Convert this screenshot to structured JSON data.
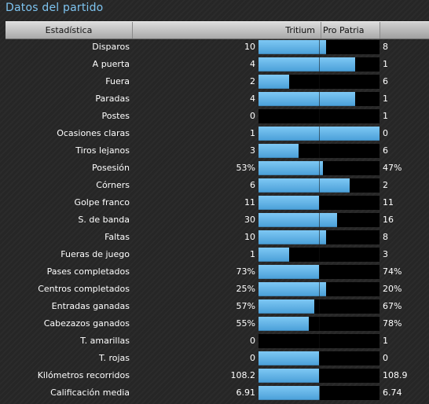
{
  "title": "Datos del partido",
  "header": {
    "stat_label": "Estadística",
    "home_team": "Tritium",
    "away_team": "Pro Patria"
  },
  "colors": {
    "accent": "#7ec4f0",
    "bar_fill": "#5bb0e6",
    "bar_track": "#000000"
  },
  "stats": [
    {
      "label": "Disparos",
      "home": "10",
      "away": "8",
      "home_share": 0.556
    },
    {
      "label": "A puerta",
      "home": "4",
      "away": "1",
      "home_share": 0.8
    },
    {
      "label": "Fuera",
      "home": "2",
      "away": "6",
      "home_share": 0.25
    },
    {
      "label": "Paradas",
      "home": "4",
      "away": "1",
      "home_share": 0.8
    },
    {
      "label": "Postes",
      "home": "0",
      "away": "1",
      "home_share": 0.0
    },
    {
      "label": "Ocasiones claras",
      "home": "1",
      "away": "0",
      "home_share": 1.0
    },
    {
      "label": "Tiros lejanos",
      "home": "3",
      "away": "6",
      "home_share": 0.333
    },
    {
      "label": "Posesión",
      "home": "53%",
      "away": "47%",
      "home_share": 0.53
    },
    {
      "label": "Córners",
      "home": "6",
      "away": "2",
      "home_share": 0.75
    },
    {
      "label": "Golpe franco",
      "home": "11",
      "away": "11",
      "home_share": 0.5
    },
    {
      "label": "S. de banda",
      "home": "30",
      "away": "16",
      "home_share": 0.652
    },
    {
      "label": "Faltas",
      "home": "10",
      "away": "8",
      "home_share": 0.556
    },
    {
      "label": "Fueras de juego",
      "home": "1",
      "away": "3",
      "home_share": 0.25
    },
    {
      "label": "Pases completados",
      "home": "73%",
      "away": "74%",
      "home_share": 0.497
    },
    {
      "label": "Centros completados",
      "home": "25%",
      "away": "20%",
      "home_share": 0.556
    },
    {
      "label": "Entradas ganadas",
      "home": "57%",
      "away": "67%",
      "home_share": 0.46
    },
    {
      "label": "Cabezazos ganados",
      "home": "55%",
      "away": "78%",
      "home_share": 0.414
    },
    {
      "label": "T. amarillas",
      "home": "0",
      "away": "1",
      "home_share": 0.0
    },
    {
      "label": "T. rojas",
      "home": "0",
      "away": "0",
      "home_share": 0.5
    },
    {
      "label": "Kilómetros recorridos",
      "home": "108.2",
      "away": "108.9",
      "home_share": 0.498
    },
    {
      "label": "Calificación media",
      "home": "6.91",
      "away": "6.74",
      "home_share": 0.506
    }
  ]
}
